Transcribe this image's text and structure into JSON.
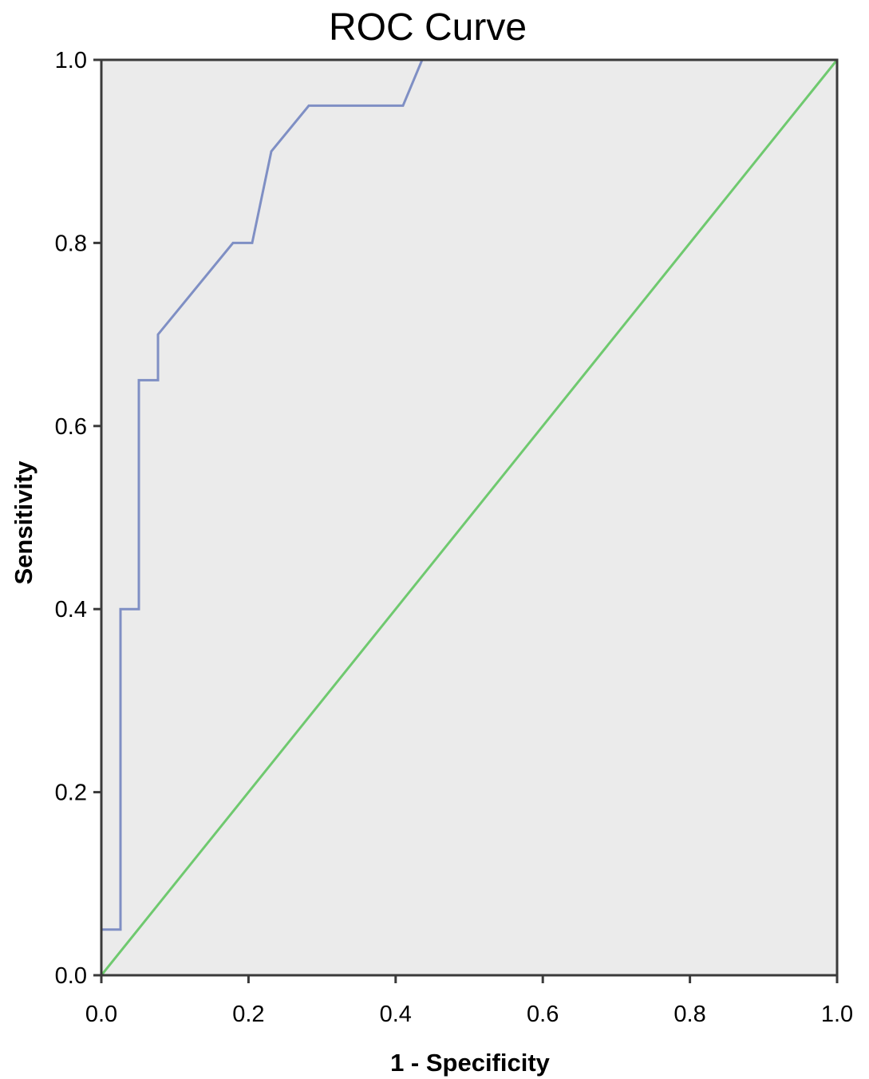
{
  "chart_data": {
    "type": "line",
    "title": "ROC Curve",
    "xlabel": "1 - Specificity",
    "ylabel": "Sensitivity",
    "xlim": [
      0,
      1
    ],
    "ylim": [
      0,
      1
    ],
    "x_ticks": [
      "0.0",
      "0.2",
      "0.4",
      "0.6",
      "0.8",
      "1.0"
    ],
    "y_ticks": [
      "0.0",
      "0.2",
      "0.4",
      "0.6",
      "0.8",
      "1.0"
    ],
    "grid": false,
    "legend": "none",
    "plot_background": "#ebebeb",
    "series": [
      {
        "color": "#7f8fc4",
        "x": [
          0.0,
          0.0,
          0.026,
          0.026,
          0.051,
          0.051,
          0.077,
          0.077,
          0.179,
          0.205,
          0.231,
          0.282,
          0.41,
          0.436,
          1.0
        ],
        "y": [
          0.0,
          0.05,
          0.05,
          0.4,
          0.4,
          0.65,
          0.65,
          0.7,
          0.8,
          0.8,
          0.9,
          0.95,
          0.95,
          1.0,
          1.0
        ]
      },
      {
        "color": "#6fc96f",
        "x": [
          0,
          1
        ],
        "y": [
          0,
          1
        ]
      }
    ]
  }
}
